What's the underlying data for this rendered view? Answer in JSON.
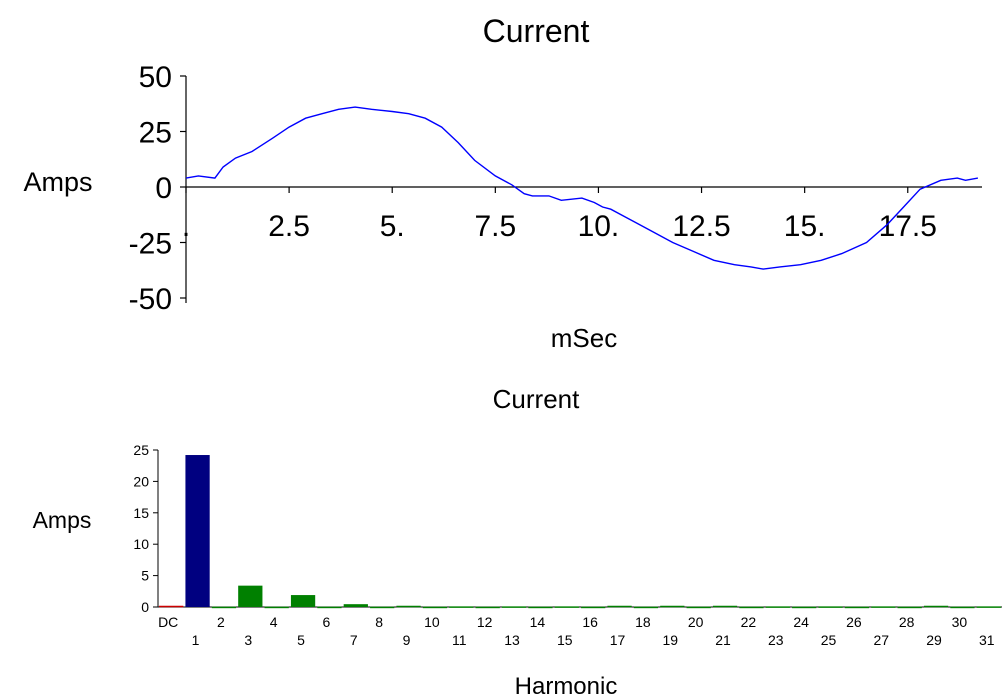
{
  "chart_data": [
    {
      "type": "line",
      "title": "Current",
      "xlabel": "mSec",
      "ylabel": "Amps",
      "xlim": [
        0,
        19.3
      ],
      "ylim": [
        -50,
        50
      ],
      "x_ticks": [
        {
          "value": 0,
          "label": "."
        },
        {
          "value": 2.5,
          "label": "2.5"
        },
        {
          "value": 5,
          "label": "5."
        },
        {
          "value": 7.5,
          "label": "7.5"
        },
        {
          "value": 10,
          "label": "10."
        },
        {
          "value": 12.5,
          "label": "12.5"
        },
        {
          "value": 15,
          "label": "15."
        },
        {
          "value": 17.5,
          "label": "17.5"
        }
      ],
      "y_ticks": [
        {
          "value": 50,
          "label": "50"
        },
        {
          "value": 25,
          "label": "25"
        },
        {
          "value": 0,
          "label": "0"
        },
        {
          "value": -25,
          "label": "-25"
        },
        {
          "value": -50,
          "label": "-50"
        }
      ],
      "line_color": "#0000ff",
      "series": [
        {
          "x": [
            0,
            0.3,
            0.7,
            0.9,
            1.2,
            1.6,
            2.1,
            2.5,
            2.9,
            3.3,
            3.7,
            4.1,
            4.5,
            5.0,
            5.4,
            5.8,
            6.2,
            6.6,
            7.0,
            7.5,
            7.9,
            8.2,
            8.4,
            8.8,
            9.1,
            9.6,
            9.9,
            10.1,
            10.3,
            10.6,
            10.9,
            11.3,
            11.8,
            12.3,
            12.8,
            13.3,
            13.7,
            14.0,
            14.4,
            14.9,
            15.4,
            15.9,
            16.5,
            17.0,
            17.4,
            17.8,
            18.3,
            18.7,
            18.9,
            19.2
          ],
          "y": [
            4,
            5,
            4,
            9,
            13,
            16,
            22,
            27,
            31,
            33,
            35,
            36,
            35,
            34,
            33,
            31,
            27,
            20,
            12,
            5,
            1,
            -3,
            -4,
            -4,
            -6,
            -5,
            -7,
            -9,
            -10,
            -13,
            -16,
            -20,
            -25,
            -29,
            -33,
            -35,
            -36,
            -37,
            -36,
            -35,
            -33,
            -30,
            -25,
            -17,
            -9,
            -1,
            3,
            4,
            3,
            4
          ]
        }
      ]
    },
    {
      "type": "bar",
      "title": "Current",
      "xlabel": "Harmonic",
      "ylabel": "Amps",
      "ylim": [
        0,
        25
      ],
      "y_ticks": [
        "0",
        "5",
        "10",
        "15",
        "20",
        "25"
      ],
      "categories": [
        "DC",
        "1",
        "2",
        "3",
        "4",
        "5",
        "6",
        "7",
        "8",
        "9",
        "10",
        "11",
        "12",
        "13",
        "14",
        "15",
        "16",
        "17",
        "18",
        "19",
        "20",
        "21",
        "22",
        "23",
        "24",
        "25",
        "26",
        "27",
        "28",
        "29",
        "30",
        "31"
      ],
      "values": [
        0.2,
        24.2,
        0.05,
        3.4,
        0.05,
        1.9,
        0.05,
        0.45,
        0.05,
        0.2,
        0.05,
        0.1,
        0.05,
        0.1,
        0.05,
        0.1,
        0.05,
        0.2,
        0.05,
        0.2,
        0.05,
        0.2,
        0.05,
        0.1,
        0.05,
        0.1,
        0.05,
        0.1,
        0.05,
        0.2,
        0.05,
        0.1
      ],
      "colors": {
        "dc": "#cc0000",
        "fundamental": "#000080",
        "harmonics": "#008000"
      }
    }
  ]
}
